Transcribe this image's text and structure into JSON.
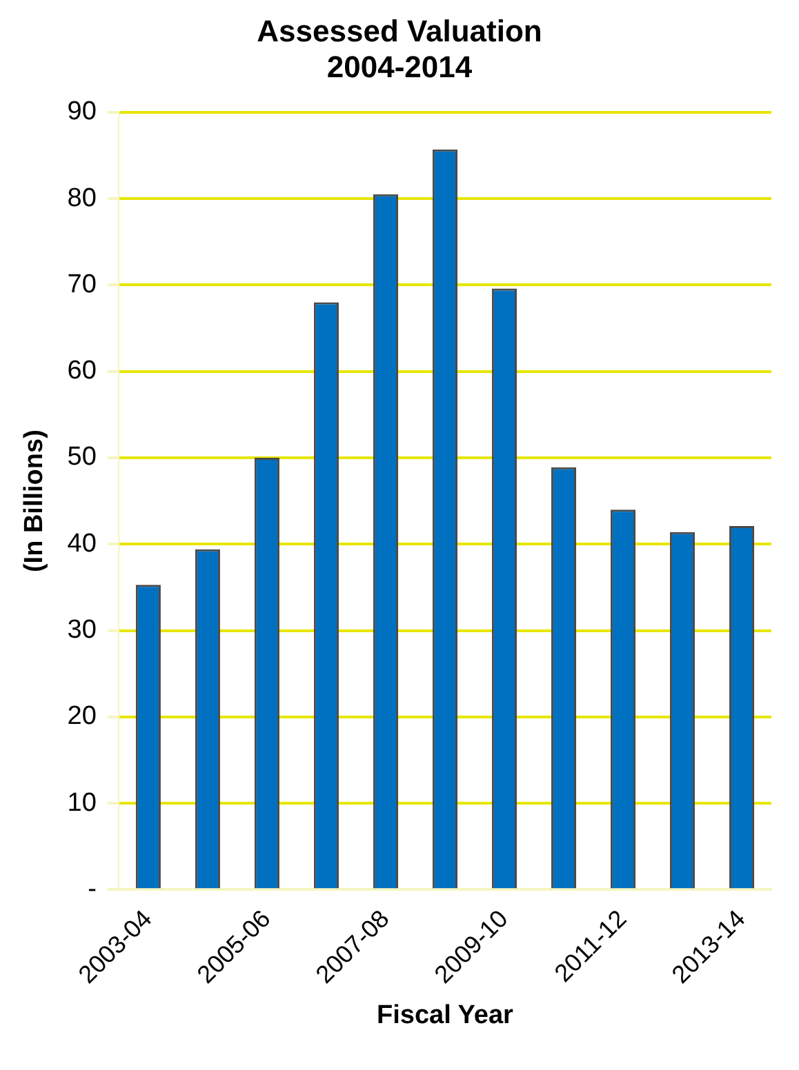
{
  "chart_data": {
    "type": "bar",
    "title": "Assessed Valuation 2004-2014",
    "xlabel": "Fiscal Year",
    "ylabel": "(In Billions)",
    "categories": [
      "2003-04",
      null,
      "2005-06",
      null,
      "2007-08",
      null,
      "2009-10",
      null,
      "2011-12",
      null,
      "2013-14"
    ],
    "values": [
      35.3,
      39.4,
      50.0,
      68.0,
      80.5,
      85.7,
      69.6,
      48.9,
      44.0,
      41.4,
      42.1
    ],
    "color": "#0070c0",
    "ylim": [
      0,
      90
    ],
    "yticks": [
      {
        "value": 0,
        "label": "-"
      },
      10,
      20,
      30,
      40,
      50,
      60,
      70,
      80,
      90
    ],
    "grid": "y"
  }
}
